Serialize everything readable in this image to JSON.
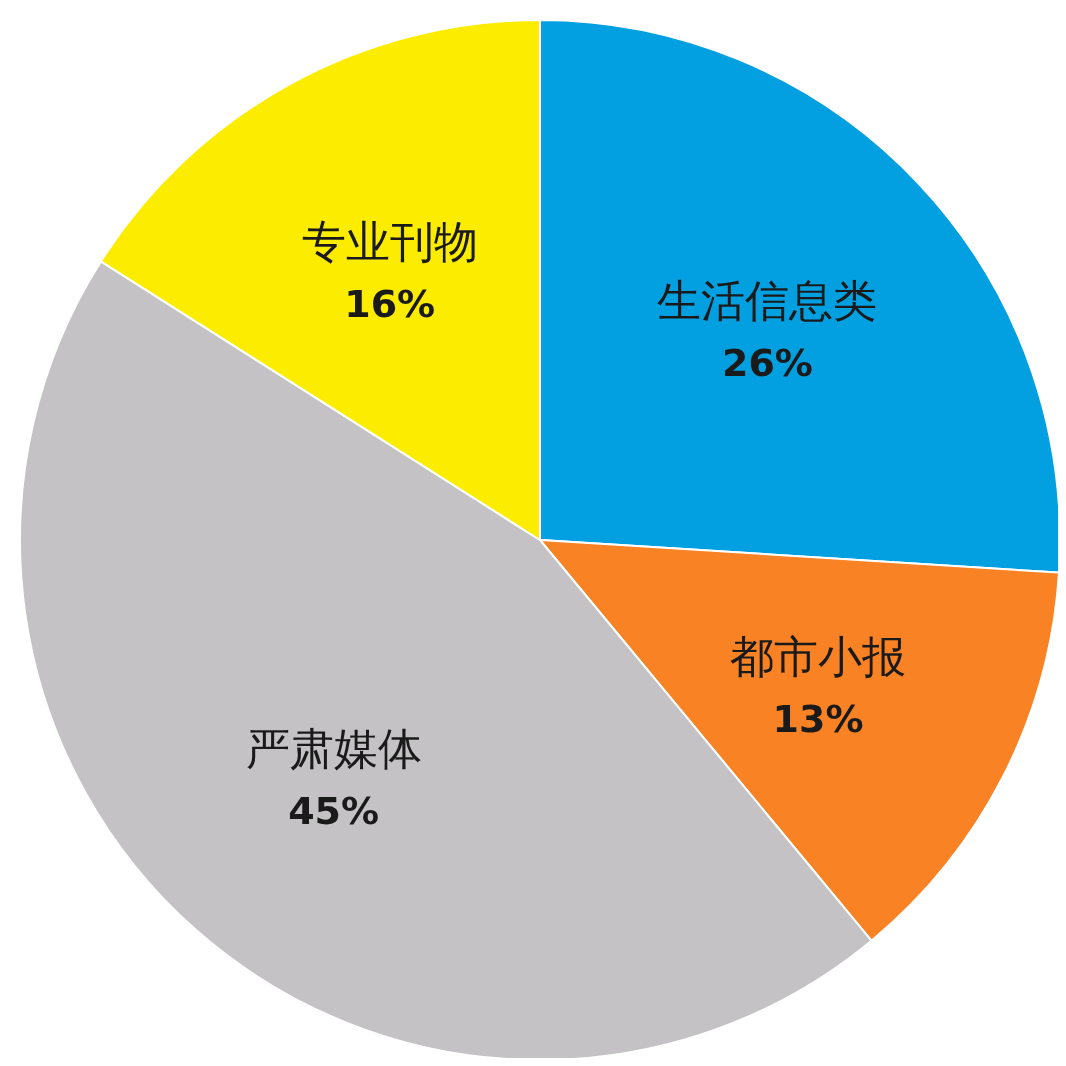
{
  "chart_data": {
    "type": "pie",
    "categories": [
      "生活信息类",
      "都市小报",
      "严肃媒体",
      "专业刊物"
    ],
    "values": [
      26,
      13,
      45,
      16
    ],
    "value_labels": [
      "26%",
      "13%",
      "45%",
      "16%"
    ],
    "colors": [
      "#02a0e0",
      "#f98224",
      "#c4c2c4",
      "#fcec00"
    ]
  }
}
